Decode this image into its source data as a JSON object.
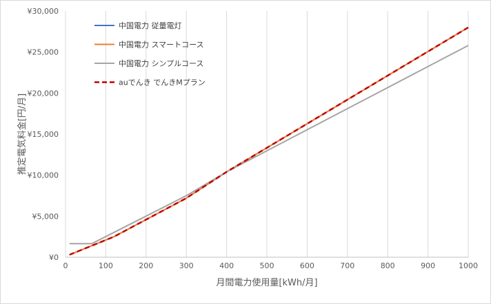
{
  "chart_data": {
    "type": "line",
    "title": "",
    "xlabel": "月間電力使用量[kWh/月]",
    "ylabel": "推定電気料金[円/月]",
    "xlim": [
      0,
      1000
    ],
    "ylim": [
      0,
      30000
    ],
    "x_ticks": [
      "0",
      "100",
      "200",
      "300",
      "400",
      "500",
      "600",
      "700",
      "800",
      "900",
      "1000"
    ],
    "y_ticks": [
      "¥0",
      "¥5,000",
      "¥10,000",
      "¥15,000",
      "¥20,000",
      "¥25,000",
      "¥30,000"
    ],
    "grid": "vertical",
    "legend_position": "top-left",
    "series": [
      {
        "name": "中国電力 従量電灯",
        "color": "#4472c4",
        "dash": "solid",
        "points": [
          [
            10,
            300
          ],
          [
            120,
            2500
          ],
          [
            300,
            7200
          ],
          [
            400,
            10400
          ],
          [
            1000,
            28000
          ]
        ]
      },
      {
        "name": "中国電力 スマートコース",
        "color": "#ed7d31",
        "dash": "solid",
        "points": [
          [
            10,
            300
          ],
          [
            120,
            2500
          ],
          [
            300,
            7200
          ],
          [
            400,
            10400
          ],
          [
            1000,
            28000
          ]
        ]
      },
      {
        "name": "中国電力 シンプルコース",
        "color": "#a5a5a5",
        "dash": "solid",
        "points": [
          [
            10,
            1650
          ],
          [
            65,
            1650
          ],
          [
            300,
            7500
          ],
          [
            400,
            10400
          ],
          [
            1000,
            25800
          ]
        ]
      },
      {
        "name": "auでんき でんきMプラン",
        "color": "#c00000",
        "dash": "dashed",
        "points": [
          [
            10,
            300
          ],
          [
            120,
            2500
          ],
          [
            300,
            7200
          ],
          [
            400,
            10400
          ],
          [
            1000,
            28000
          ]
        ]
      }
    ]
  }
}
